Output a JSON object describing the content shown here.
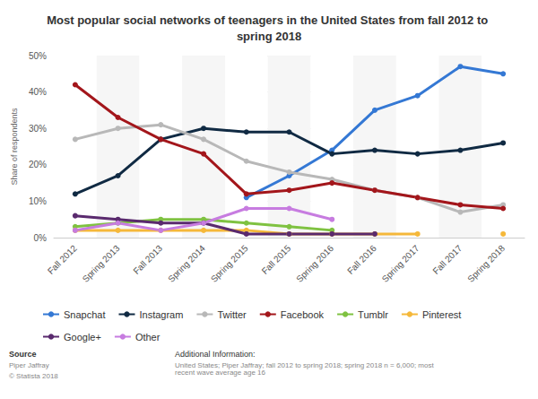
{
  "chart_data": {
    "type": "line",
    "title": "Most popular social networks of teenagers in the United States from fall 2012 to spring 2018",
    "y_label": "Share of respondents",
    "categories": [
      "Fall 2012",
      "Spring 2013",
      "Fall 2013",
      "Spring 2014",
      "Spring 2015",
      "Fall 2015",
      "Spring 2016",
      "Fall 2016",
      "Spring 2017",
      "Fall 2017",
      "Spring 2018"
    ],
    "series": [
      {
        "name": "Snapchat",
        "color": "#3478d4",
        "values": [
          null,
          null,
          null,
          null,
          11,
          17,
          24,
          35,
          39,
          47,
          45
        ]
      },
      {
        "name": "Instagram",
        "color": "#102a43",
        "values": [
          12,
          17,
          27,
          30,
          29,
          29,
          23,
          24,
          23,
          24,
          26
        ]
      },
      {
        "name": "Twitter",
        "color": "#b8b8b8",
        "values": [
          27,
          30,
          31,
          27,
          21,
          18,
          16,
          13,
          11,
          7,
          9
        ]
      },
      {
        "name": "Facebook",
        "color": "#a3161b",
        "values": [
          42,
          33,
          27,
          23,
          12,
          13,
          15,
          13,
          11,
          9,
          8
        ]
      },
      {
        "name": "Tumblr",
        "color": "#7fc241",
        "values": [
          3,
          4,
          5,
          5,
          4,
          3,
          2,
          null,
          null,
          null,
          null
        ]
      },
      {
        "name": "Pinterest",
        "color": "#f5b83a",
        "values": [
          2,
          2,
          2,
          2,
          2,
          1,
          1,
          1,
          1,
          null,
          1
        ]
      },
      {
        "name": "Google+",
        "color": "#5a2a6e",
        "values": [
          6,
          5,
          4,
          4,
          1,
          1,
          1,
          1,
          null,
          null,
          null
        ]
      },
      {
        "name": "Other",
        "color": "#c77ce0",
        "values": [
          2,
          4,
          2,
          4,
          8,
          8,
          5,
          null,
          null,
          null,
          null
        ]
      }
    ],
    "ylim": [
      0,
      50
    ],
    "yticks": [
      {
        "value": 0,
        "label": "0%"
      },
      {
        "value": 10,
        "label": "10%"
      },
      {
        "value": 20,
        "label": "20%"
      },
      {
        "value": 30,
        "label": "30%"
      },
      {
        "value": 40,
        "label": "40%"
      },
      {
        "value": 50,
        "label": "50%"
      }
    ],
    "grid": true,
    "legend": "bottom-left",
    "marker": "circle",
    "annotations": [
      "Source",
      "Piper Jaffray",
      "© Statista 2018",
      "Additional Information:",
      "United States; Piper Jaffray; fall 2012 to spring 2018; spring 2018 n = 6,000; most recent wave average age 16"
    ]
  }
}
